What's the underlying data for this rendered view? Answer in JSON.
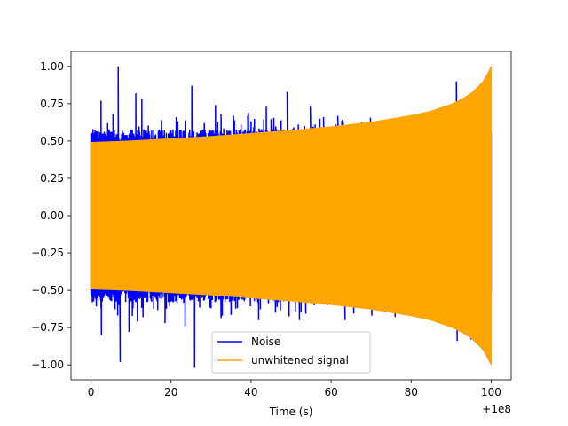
{
  "chart_data": {
    "type": "line",
    "title": "",
    "xlabel": "Time (s)",
    "ylabel": "",
    "x_offset_label": "+1e8",
    "xlim": [
      -5,
      105
    ],
    "ylim": [
      -1.1,
      1.1
    ],
    "x_ticks": [
      0,
      20,
      40,
      60,
      80,
      100
    ],
    "x_tick_labels": [
      "0",
      "20",
      "40",
      "60",
      "80",
      "100"
    ],
    "y_ticks": [
      1.0,
      0.75,
      0.5,
      0.25,
      0.0,
      -0.25,
      -0.5,
      -0.75,
      -1.0
    ],
    "y_tick_labels": [
      "1.00",
      "0.75",
      "0.50",
      "0.25",
      "0.00",
      "−0.25",
      "−0.50",
      "−0.75",
      "−1.00"
    ],
    "grid": false,
    "legend_position": "bottom-center",
    "series": [
      {
        "name": "Noise",
        "color": "#0000ff",
        "style": "spiky noise, typical amplitude about 0.55, peaks to 1.0 and -1.02, x from 0 to 100",
        "spikes": [
          [
            2.5,
            0.77
          ],
          [
            2.6,
            -0.8
          ],
          [
            5.5,
            0.68
          ],
          [
            6.8,
            1.0
          ],
          [
            7.3,
            -0.98
          ],
          [
            9.5,
            -0.78
          ],
          [
            11.2,
            0.82
          ],
          [
            11.6,
            -0.71
          ],
          [
            12.7,
            0.78
          ],
          [
            13.0,
            -0.68
          ],
          [
            17.6,
            0.64
          ],
          [
            18.5,
            -0.72
          ],
          [
            21.3,
            0.66
          ],
          [
            23.5,
            -0.74
          ],
          [
            25.2,
            0.87
          ],
          [
            25.9,
            -1.02
          ],
          [
            28.3,
            0.62
          ],
          [
            31.1,
            0.74
          ],
          [
            32.8,
            -0.67
          ],
          [
            35.6,
            0.67
          ],
          [
            36.6,
            -0.62
          ],
          [
            37.5,
            0.61
          ],
          [
            41.9,
            -0.7
          ],
          [
            43.8,
            0.73
          ],
          [
            46.1,
            -0.65
          ],
          [
            48.3,
            0.57
          ],
          [
            49.0,
            0.83
          ],
          [
            51.8,
            0.61
          ],
          [
            52.1,
            -0.7
          ],
          [
            53.4,
            0.6
          ],
          [
            54.8,
            0.73
          ],
          [
            55.8,
            -0.6
          ],
          [
            58.1,
            0.66
          ],
          [
            61.2,
            0.61
          ],
          [
            63.5,
            -0.7
          ],
          [
            64.6,
            0.59
          ],
          [
            65.8,
            -0.61
          ],
          [
            70.2,
            -0.67
          ],
          [
            73.4,
            -0.64
          ],
          [
            77.5,
            0.56
          ],
          [
            85.0,
            -0.7
          ],
          [
            91.3,
            0.9
          ],
          [
            91.5,
            -0.84
          ],
          [
            95.0,
            -0.83
          ],
          [
            99.6,
            -0.98
          ]
        ]
      },
      {
        "name": "unwhitened signal",
        "color": "#ffa500",
        "style": "dense oscillation with amplitude growing from about 0.49 at x=0 to 1.0 at x=100",
        "envelope_x": [
          0,
          10,
          20,
          30,
          40,
          50,
          60,
          70,
          80,
          85,
          90,
          93,
          95,
          97,
          98,
          99,
          100
        ],
        "envelope_y": [
          0.49,
          0.5,
          0.515,
          0.53,
          0.55,
          0.57,
          0.595,
          0.625,
          0.67,
          0.7,
          0.745,
          0.785,
          0.82,
          0.87,
          0.9,
          0.945,
          1.0
        ]
      }
    ]
  }
}
